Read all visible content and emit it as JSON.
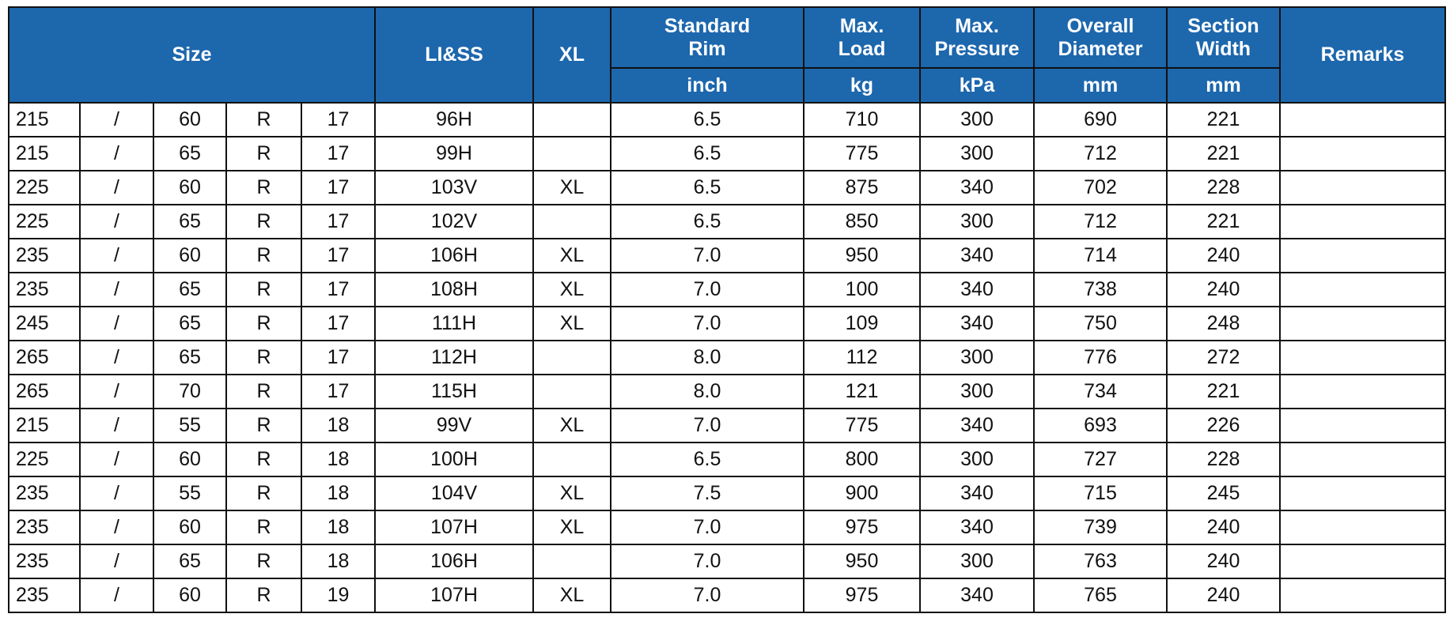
{
  "headers": {
    "size": "Size",
    "li_ss": "LI&SS",
    "xl": "XL",
    "rim_l1": "Standard",
    "rim_l2": "Rim",
    "load_l1": "Max.",
    "load_l2": "Load",
    "pressure_l1": "Max.",
    "pressure_l2": "Pressure",
    "diameter_l1": "Overall",
    "diameter_l2": "Diameter",
    "width_l1": "Section",
    "width_l2": "Width",
    "remarks": "Remarks"
  },
  "units": {
    "rim": "inch",
    "load": "kg",
    "pressure": "kPa",
    "diameter": "mm",
    "width": "mm"
  },
  "rows": [
    {
      "width": "215",
      "sep": "/",
      "aspect": "60",
      "construction": "R",
      "diameter_in": "17",
      "li_ss": "96H",
      "xl": "",
      "rim": "6.5",
      "load": "710",
      "pressure": "300",
      "overall_dia": "690",
      "section_width": "221",
      "remarks": ""
    },
    {
      "width": "215",
      "sep": "/",
      "aspect": "65",
      "construction": "R",
      "diameter_in": "17",
      "li_ss": "99H",
      "xl": "",
      "rim": "6.5",
      "load": "775",
      "pressure": "300",
      "overall_dia": "712",
      "section_width": "221",
      "remarks": ""
    },
    {
      "width": "225",
      "sep": "/",
      "aspect": "60",
      "construction": "R",
      "diameter_in": "17",
      "li_ss": "103V",
      "xl": "XL",
      "rim": "6.5",
      "load": "875",
      "pressure": "340",
      "overall_dia": "702",
      "section_width": "228",
      "remarks": ""
    },
    {
      "width": "225",
      "sep": "/",
      "aspect": "65",
      "construction": "R",
      "diameter_in": "17",
      "li_ss": "102V",
      "xl": "",
      "rim": "6.5",
      "load": "850",
      "pressure": "300",
      "overall_dia": "712",
      "section_width": "221",
      "remarks": ""
    },
    {
      "width": "235",
      "sep": "/",
      "aspect": "60",
      "construction": "R",
      "diameter_in": "17",
      "li_ss": "106H",
      "xl": "XL",
      "rim": "7.0",
      "load": "950",
      "pressure": "340",
      "overall_dia": "714",
      "section_width": "240",
      "remarks": ""
    },
    {
      "width": "235",
      "sep": "/",
      "aspect": "65",
      "construction": "R",
      "diameter_in": "17",
      "li_ss": "108H",
      "xl": "XL",
      "rim": "7.0",
      "load": "100",
      "pressure": "340",
      "overall_dia": "738",
      "section_width": "240",
      "remarks": ""
    },
    {
      "width": "245",
      "sep": "/",
      "aspect": "65",
      "construction": "R",
      "diameter_in": "17",
      "li_ss": "111H",
      "xl": "XL",
      "rim": "7.0",
      "load": "109",
      "pressure": "340",
      "overall_dia": "750",
      "section_width": "248",
      "remarks": ""
    },
    {
      "width": "265",
      "sep": "/",
      "aspect": "65",
      "construction": "R",
      "diameter_in": "17",
      "li_ss": "112H",
      "xl": "",
      "rim": "8.0",
      "load": "112",
      "pressure": "300",
      "overall_dia": "776",
      "section_width": "272",
      "remarks": ""
    },
    {
      "width": "265",
      "sep": "/",
      "aspect": "70",
      "construction": "R",
      "diameter_in": "17",
      "li_ss": "115H",
      "xl": "",
      "rim": "8.0",
      "load": "121",
      "pressure": "300",
      "overall_dia": "734",
      "section_width": "221",
      "remarks": ""
    },
    {
      "width": "215",
      "sep": "/",
      "aspect": "55",
      "construction": "R",
      "diameter_in": "18",
      "li_ss": "99V",
      "xl": "XL",
      "rim": "7.0",
      "load": "775",
      "pressure": "340",
      "overall_dia": "693",
      "section_width": "226",
      "remarks": ""
    },
    {
      "width": "225",
      "sep": "/",
      "aspect": "60",
      "construction": "R",
      "diameter_in": "18",
      "li_ss": "100H",
      "xl": "",
      "rim": "6.5",
      "load": "800",
      "pressure": "300",
      "overall_dia": "727",
      "section_width": "228",
      "remarks": ""
    },
    {
      "width": "235",
      "sep": "/",
      "aspect": "55",
      "construction": "R",
      "diameter_in": "18",
      "li_ss": "104V",
      "xl": "XL",
      "rim": "7.5",
      "load": "900",
      "pressure": "340",
      "overall_dia": "715",
      "section_width": "245",
      "remarks": ""
    },
    {
      "width": "235",
      "sep": "/",
      "aspect": "60",
      "construction": "R",
      "diameter_in": "18",
      "li_ss": "107H",
      "xl": "XL",
      "rim": "7.0",
      "load": "975",
      "pressure": "340",
      "overall_dia": "739",
      "section_width": "240",
      "remarks": ""
    },
    {
      "width": "235",
      "sep": "/",
      "aspect": "65",
      "construction": "R",
      "diameter_in": "18",
      "li_ss": "106H",
      "xl": "",
      "rim": "7.0",
      "load": "950",
      "pressure": "300",
      "overall_dia": "763",
      "section_width": "240",
      "remarks": ""
    },
    {
      "width": "235",
      "sep": "/",
      "aspect": "60",
      "construction": "R",
      "diameter_in": "19",
      "li_ss": "107H",
      "xl": "XL",
      "rim": "7.0",
      "load": "975",
      "pressure": "340",
      "overall_dia": "765",
      "section_width": "240",
      "remarks": ""
    }
  ],
  "colors": {
    "header_bg": "#1d67ad",
    "header_text": "#ffffff",
    "grid": "#111111",
    "cell_text": "#111111"
  }
}
